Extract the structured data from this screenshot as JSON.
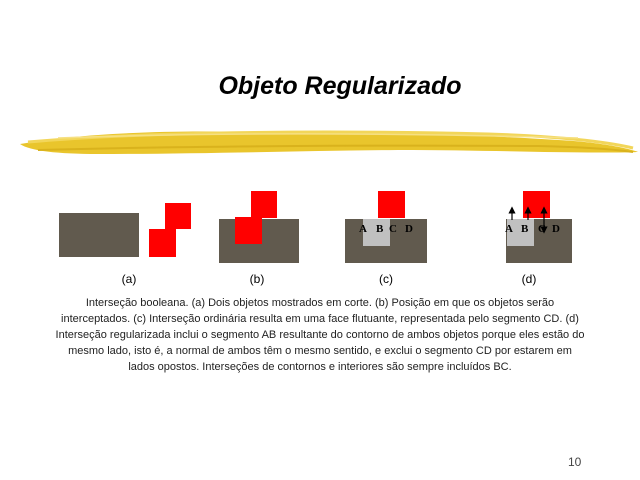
{
  "slide": {
    "title": "Objeto Regularizado",
    "page_number": "10"
  },
  "figure": {
    "labels": [
      "(a)",
      "(b)",
      "(c)",
      "(d)"
    ],
    "segment_labels_c": [
      "A",
      "B",
      "C",
      "D"
    ],
    "segment_labels_d": [
      "A",
      "B",
      "C",
      "D"
    ],
    "colors": {
      "dark": "#615a4e",
      "red": "#ff0000",
      "gray": "#c0c0c0",
      "highlight": "#e9c52c"
    }
  },
  "caption": "Interseção booleana. (a) Dois objetos mostrados em corte. (b) Posição em que os objetos serão interceptados. (c) Interseção ordinária resulta em uma face flutuante, representada pelo segmento CD. (d) Interseção regularizada inclui o segmento AB resultante do contorno de ambos objetos porque eles estão do mesmo lado, isto é, a normal de ambos têm o mesmo sentido, e exclui o segmento CD por estarem em lados opostos. Interseções de contornos e interiores são sempre incluídos BC."
}
